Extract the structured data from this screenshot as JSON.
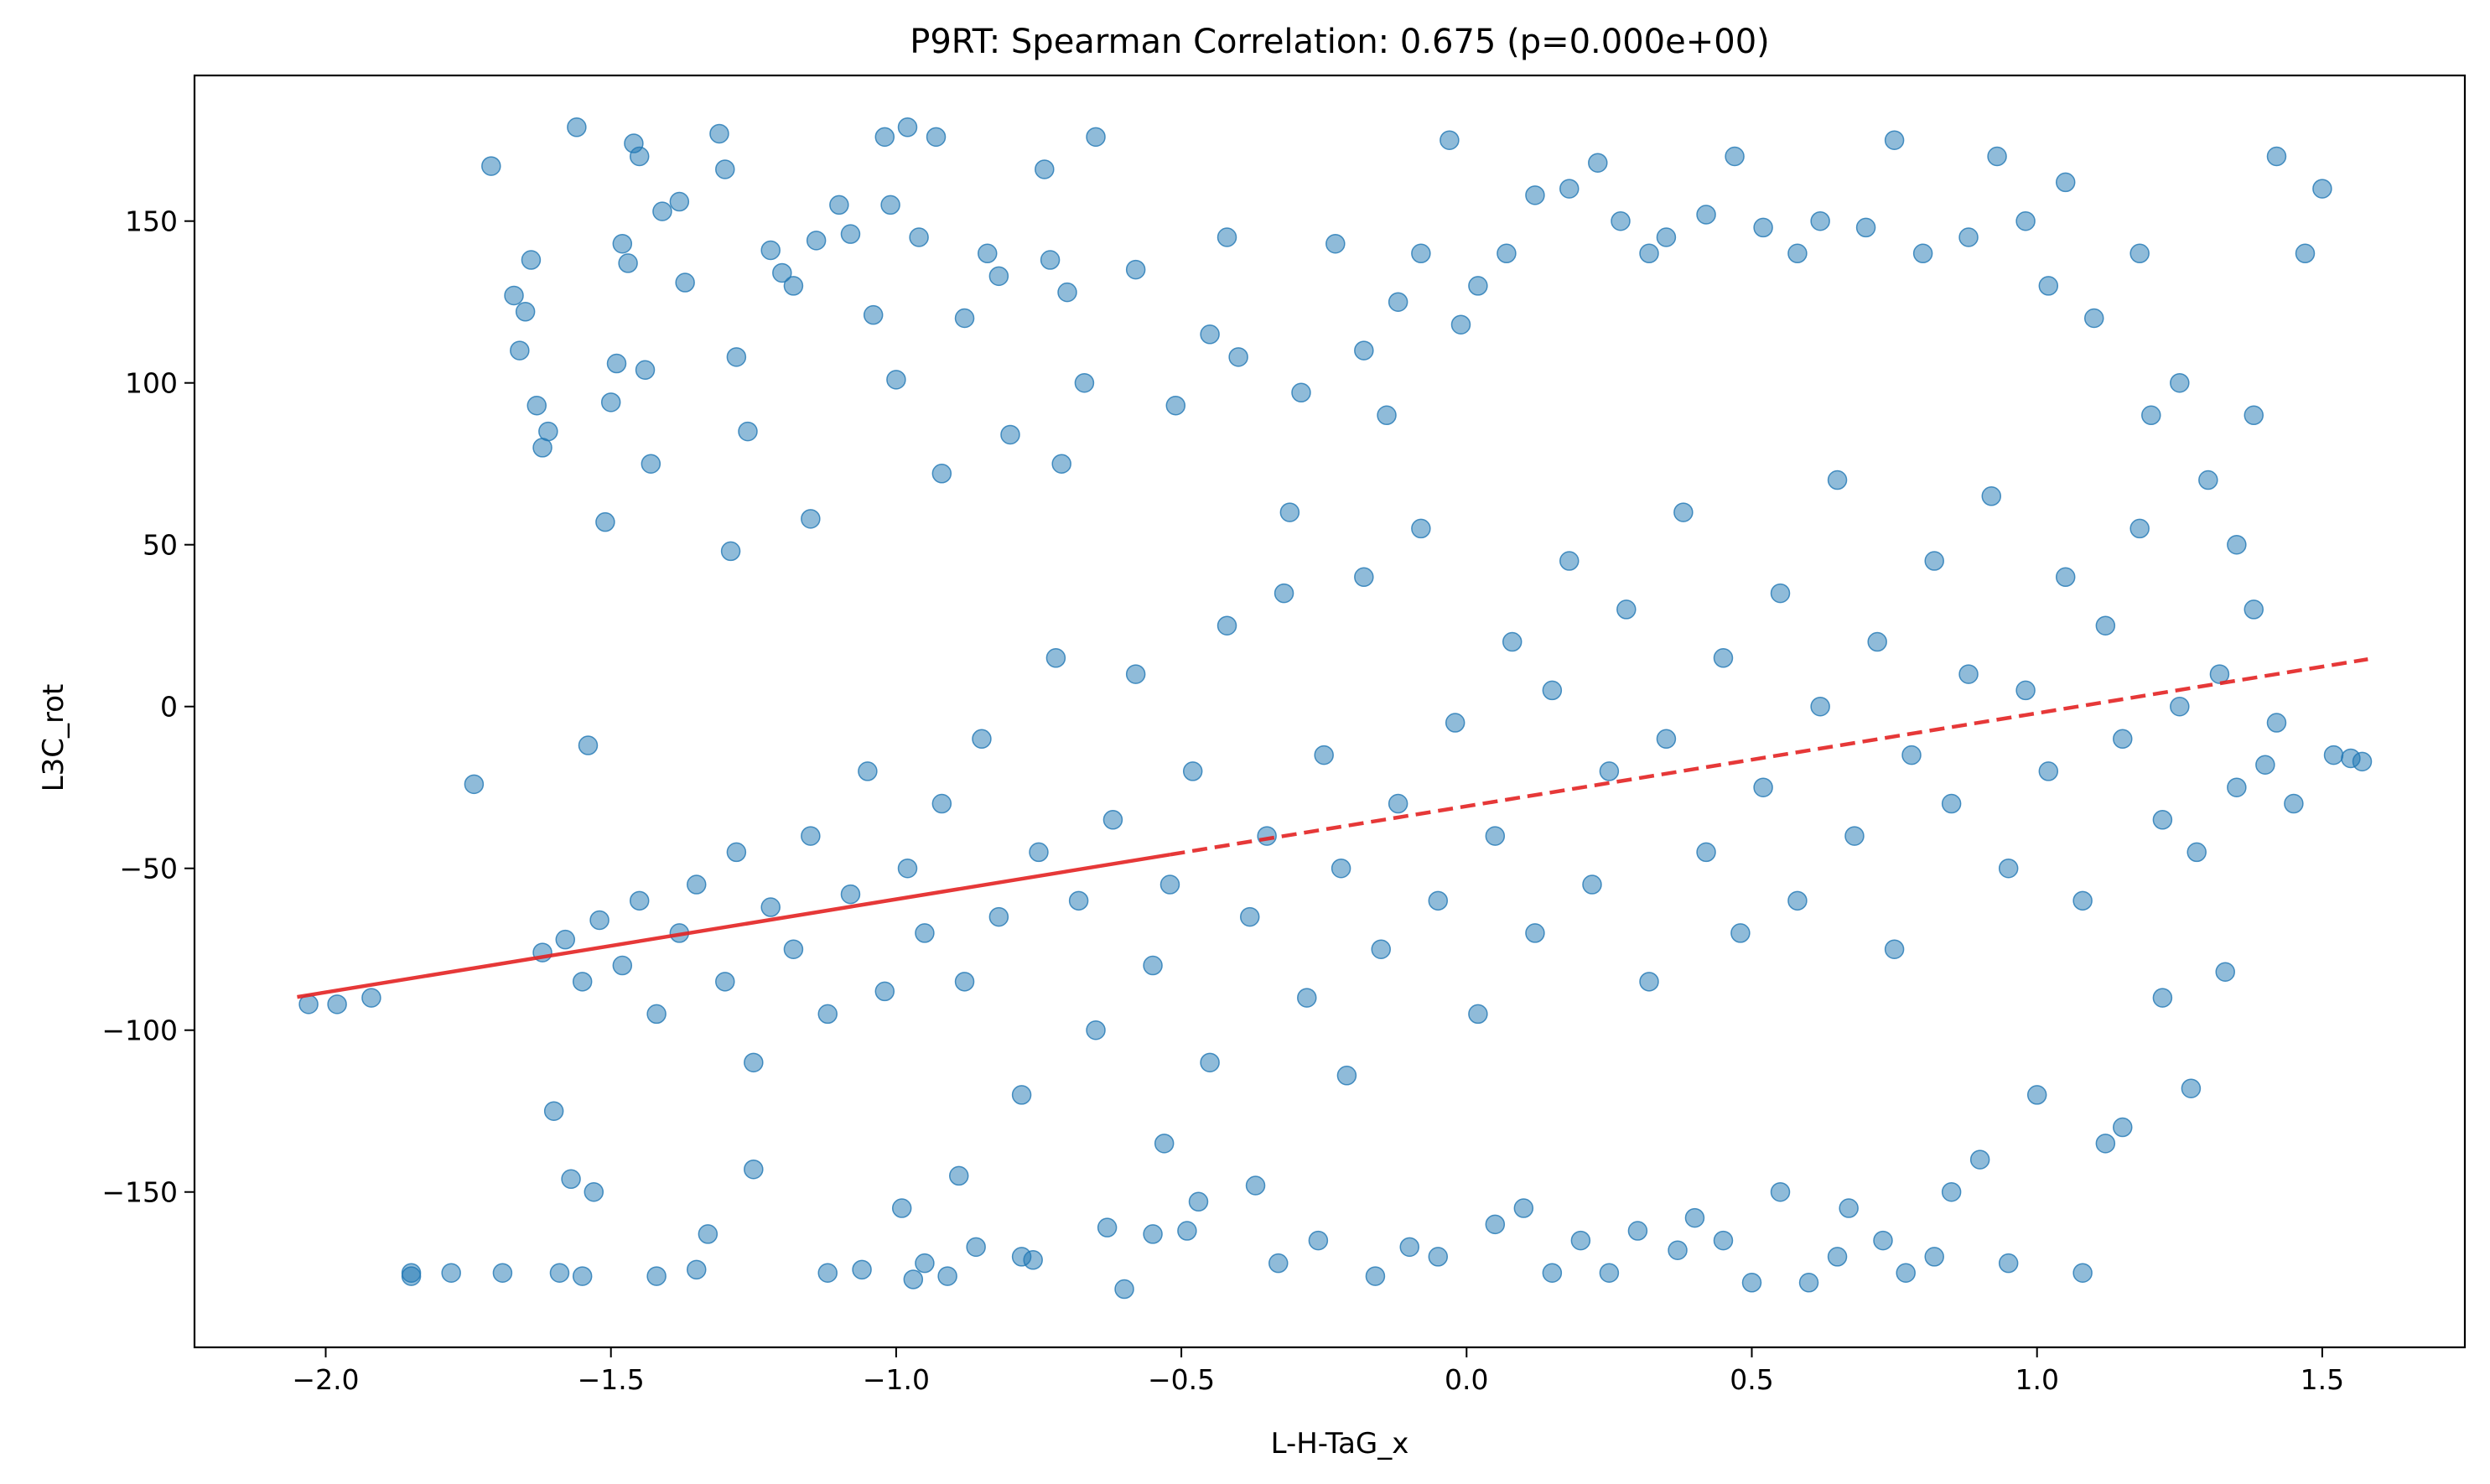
{
  "chart_data": {
    "type": "scatter",
    "title": "P9RT: Spearman Correlation: 0.675 (p=0.000e+00)",
    "xlabel": "L-H-TaG_x",
    "ylabel": "L3C_rot",
    "xlim": [
      -2.23,
      1.75
    ],
    "ylim": [
      -198,
      195
    ],
    "x_ticks": [
      -2.0,
      -1.5,
      -1.0,
      -0.5,
      0.0,
      0.5,
      1.0,
      1.5
    ],
    "x_tick_labels": [
      "−2.0",
      "−1.5",
      "−1.0",
      "−0.5",
      "0.0",
      "0.5",
      "1.0",
      "1.5"
    ],
    "y_ticks": [
      150,
      100,
      50,
      0,
      -50,
      -100,
      -150
    ],
    "y_tick_labels": [
      "150",
      "100",
      "50",
      "0",
      "−50",
      "−100",
      "−150"
    ],
    "grid": false,
    "series": [
      {
        "marker_color": "#1f77b4",
        "marker_alpha": 0.5,
        "points": [
          [
            -2.03,
            -92
          ],
          [
            -1.98,
            -92
          ],
          [
            -1.92,
            -90
          ],
          [
            -1.85,
            -176
          ],
          [
            -1.85,
            -175
          ],
          [
            -1.78,
            -175
          ],
          [
            -1.74,
            -24
          ],
          [
            -1.71,
            167
          ],
          [
            -1.69,
            -175
          ],
          [
            -1.67,
            127
          ],
          [
            -1.66,
            110
          ],
          [
            -1.65,
            122
          ],
          [
            -1.64,
            138
          ],
          [
            -1.63,
            93
          ],
          [
            -1.62,
            80
          ],
          [
            -1.61,
            85
          ],
          [
            -1.6,
            -125
          ],
          [
            -1.59,
            -175
          ],
          [
            -1.57,
            -146
          ],
          [
            -1.56,
            179
          ],
          [
            -1.55,
            -176
          ],
          [
            -1.54,
            -12
          ],
          [
            -1.53,
            -150
          ],
          [
            -1.51,
            57
          ],
          [
            -1.5,
            94
          ],
          [
            -1.49,
            106
          ],
          [
            -1.48,
            143
          ],
          [
            -1.47,
            137
          ],
          [
            -1.46,
            174
          ],
          [
            -1.45,
            170
          ],
          [
            -1.44,
            104
          ],
          [
            -1.43,
            75
          ],
          [
            -1.42,
            -176
          ],
          [
            -1.41,
            153
          ],
          [
            -1.38,
            156
          ],
          [
            -1.37,
            131
          ],
          [
            -1.35,
            -174
          ],
          [
            -1.33,
            -163
          ],
          [
            -1.31,
            177
          ],
          [
            -1.3,
            166
          ],
          [
            -1.29,
            48
          ],
          [
            -1.28,
            108
          ],
          [
            -1.26,
            85
          ],
          [
            -1.25,
            -143
          ],
          [
            -1.22,
            141
          ],
          [
            -1.2,
            134
          ],
          [
            -1.18,
            130
          ],
          [
            -1.15,
            58
          ],
          [
            -1.14,
            144
          ],
          [
            -1.12,
            -175
          ],
          [
            -1.1,
            155
          ],
          [
            -1.08,
            146
          ],
          [
            -1.06,
            -174
          ],
          [
            -1.04,
            121
          ],
          [
            -1.02,
            176
          ],
          [
            -1.01,
            155
          ],
          [
            -1.0,
            101
          ],
          [
            -0.99,
            -155
          ],
          [
            -0.98,
            179
          ],
          [
            -0.97,
            -177
          ],
          [
            -0.96,
            145
          ],
          [
            -0.95,
            -172
          ],
          [
            -0.93,
            176
          ],
          [
            -0.92,
            72
          ],
          [
            -0.91,
            -176
          ],
          [
            -0.89,
            -145
          ],
          [
            -0.88,
            120
          ],
          [
            -0.86,
            -167
          ],
          [
            -0.84,
            140
          ],
          [
            -0.82,
            133
          ],
          [
            -0.8,
            84
          ],
          [
            -0.78,
            -170
          ],
          [
            -0.76,
            -171
          ],
          [
            -0.74,
            166
          ],
          [
            -0.73,
            138
          ],
          [
            -0.71,
            75
          ],
          [
            -0.7,
            128
          ],
          [
            -0.67,
            100
          ],
          [
            -0.65,
            176
          ],
          [
            -0.63,
            -161
          ],
          [
            -0.6,
            -180
          ],
          [
            -0.58,
            135
          ],
          [
            -0.55,
            -163
          ],
          [
            -0.53,
            -135
          ],
          [
            -0.51,
            93
          ],
          [
            -0.49,
            -162
          ],
          [
            -0.47,
            -153
          ],
          [
            -0.45,
            115
          ],
          [
            -0.42,
            145
          ],
          [
            -0.4,
            108
          ],
          [
            -0.37,
            -148
          ],
          [
            -0.33,
            -172
          ],
          [
            -0.31,
            60
          ],
          [
            -0.29,
            97
          ],
          [
            -0.26,
            -165
          ],
          [
            -0.23,
            143
          ],
          [
            -0.21,
            -114
          ],
          [
            -0.18,
            110
          ],
          [
            -0.16,
            -176
          ],
          [
            -0.14,
            90
          ],
          [
            -0.12,
            125
          ],
          [
            -0.1,
            -167
          ],
          [
            -0.08,
            140
          ],
          [
            -0.05,
            -170
          ],
          [
            -0.03,
            175
          ],
          [
            -0.01,
            118
          ],
          [
            0.02,
            130
          ],
          [
            0.05,
            -160
          ],
          [
            0.07,
            140
          ],
          [
            0.1,
            -155
          ],
          [
            0.12,
            158
          ],
          [
            0.15,
            -175
          ],
          [
            0.18,
            160
          ],
          [
            0.2,
            -165
          ],
          [
            0.23,
            168
          ],
          [
            0.25,
            -175
          ],
          [
            0.27,
            150
          ],
          [
            0.3,
            -162
          ],
          [
            0.32,
            140
          ],
          [
            0.35,
            145
          ],
          [
            0.37,
            -168
          ],
          [
            0.4,
            -158
          ],
          [
            0.42,
            152
          ],
          [
            0.45,
            -165
          ],
          [
            0.47,
            170
          ],
          [
            0.5,
            -178
          ],
          [
            0.52,
            148
          ],
          [
            0.55,
            -150
          ],
          [
            0.58,
            140
          ],
          [
            0.6,
            -178
          ],
          [
            0.62,
            150
          ],
          [
            0.65,
            -170
          ],
          [
            0.67,
            -155
          ],
          [
            0.7,
            148
          ],
          [
            0.73,
            -165
          ],
          [
            0.75,
            175
          ],
          [
            0.77,
            -175
          ],
          [
            0.8,
            140
          ],
          [
            0.82,
            -170
          ],
          [
            0.85,
            -150
          ],
          [
            0.88,
            145
          ],
          [
            0.9,
            -140
          ],
          [
            0.93,
            170
          ],
          [
            0.95,
            -172
          ],
          [
            0.98,
            150
          ],
          [
            1.0,
            -120
          ],
          [
            1.02,
            130
          ],
          [
            1.05,
            162
          ],
          [
            1.08,
            -175
          ],
          [
            1.1,
            120
          ],
          [
            1.12,
            -135
          ],
          [
            1.15,
            -130
          ],
          [
            1.18,
            140
          ],
          [
            1.2,
            90
          ],
          [
            1.22,
            -90
          ],
          [
            1.25,
            100
          ],
          [
            1.27,
            -118
          ],
          [
            1.3,
            70
          ],
          [
            1.33,
            -82
          ],
          [
            1.35,
            50
          ],
          [
            1.38,
            90
          ],
          [
            1.4,
            -18
          ],
          [
            1.42,
            170
          ],
          [
            1.45,
            -30
          ],
          [
            1.47,
            140
          ],
          [
            1.5,
            160
          ],
          [
            1.52,
            -15
          ],
          [
            1.55,
            -16
          ],
          [
            1.57,
            -17
          ],
          [
            -1.62,
            -76
          ],
          [
            -1.58,
            -72
          ],
          [
            -1.55,
            -85
          ],
          [
            -1.52,
            -66
          ],
          [
            -1.48,
            -80
          ],
          [
            -1.45,
            -60
          ],
          [
            -1.42,
            -95
          ],
          [
            -1.38,
            -70
          ],
          [
            -1.35,
            -55
          ],
          [
            -1.3,
            -85
          ],
          [
            -1.28,
            -45
          ],
          [
            -1.25,
            -110
          ],
          [
            -1.22,
            -62
          ],
          [
            -1.18,
            -75
          ],
          [
            -1.15,
            -40
          ],
          [
            -1.12,
            -95
          ],
          [
            -1.08,
            -58
          ],
          [
            -1.05,
            -20
          ],
          [
            -1.02,
            -88
          ],
          [
            -0.98,
            -50
          ],
          [
            -0.95,
            -70
          ],
          [
            -0.92,
            -30
          ],
          [
            -0.88,
            -85
          ],
          [
            -0.85,
            -10
          ],
          [
            -0.82,
            -65
          ],
          [
            -0.78,
            -120
          ],
          [
            -0.75,
            -45
          ],
          [
            -0.72,
            15
          ],
          [
            -0.68,
            -60
          ],
          [
            -0.65,
            -100
          ],
          [
            -0.62,
            -35
          ],
          [
            -0.58,
            10
          ],
          [
            -0.55,
            -80
          ],
          [
            -0.52,
            -55
          ],
          [
            -0.48,
            -20
          ],
          [
            -0.45,
            -110
          ],
          [
            -0.42,
            25
          ],
          [
            -0.38,
            -65
          ],
          [
            -0.35,
            -40
          ],
          [
            -0.32,
            35
          ],
          [
            -0.28,
            -90
          ],
          [
            -0.25,
            -15
          ],
          [
            -0.22,
            -50
          ],
          [
            -0.18,
            40
          ],
          [
            -0.15,
            -75
          ],
          [
            -0.12,
            -30
          ],
          [
            -0.08,
            55
          ],
          [
            -0.05,
            -60
          ],
          [
            -0.02,
            -5
          ],
          [
            0.02,
            -95
          ],
          [
            0.05,
            -40
          ],
          [
            0.08,
            20
          ],
          [
            0.12,
            -70
          ],
          [
            0.15,
            5
          ],
          [
            0.18,
            45
          ],
          [
            0.22,
            -55
          ],
          [
            0.25,
            -20
          ],
          [
            0.28,
            30
          ],
          [
            0.32,
            -85
          ],
          [
            0.35,
            -10
          ],
          [
            0.38,
            60
          ],
          [
            0.42,
            -45
          ],
          [
            0.45,
            15
          ],
          [
            0.48,
            -70
          ],
          [
            0.52,
            -25
          ],
          [
            0.55,
            35
          ],
          [
            0.58,
            -60
          ],
          [
            0.62,
            0
          ],
          [
            0.65,
            70
          ],
          [
            0.68,
            -40
          ],
          [
            0.72,
            20
          ],
          [
            0.75,
            -75
          ],
          [
            0.78,
            -15
          ],
          [
            0.82,
            45
          ],
          [
            0.85,
            -30
          ],
          [
            0.88,
            10
          ],
          [
            0.92,
            65
          ],
          [
            0.95,
            -50
          ],
          [
            0.98,
            5
          ],
          [
            1.02,
            -20
          ],
          [
            1.05,
            40
          ],
          [
            1.08,
            -60
          ],
          [
            1.12,
            25
          ],
          [
            1.15,
            -10
          ],
          [
            1.18,
            55
          ],
          [
            1.22,
            -35
          ],
          [
            1.25,
            0
          ],
          [
            1.28,
            -45
          ],
          [
            1.32,
            10
          ],
          [
            1.35,
            -25
          ],
          [
            1.38,
            30
          ],
          [
            1.42,
            -5
          ]
        ]
      },
      {
        "name": "",
        "type": "fit-line",
        "color": "#e32222",
        "solid_x": [
          -2.05,
          -0.52
        ],
        "dashed_x": [
          -0.52,
          1.58
        ],
        "intercept": -30.8,
        "slope": 28.75
      }
    ]
  }
}
